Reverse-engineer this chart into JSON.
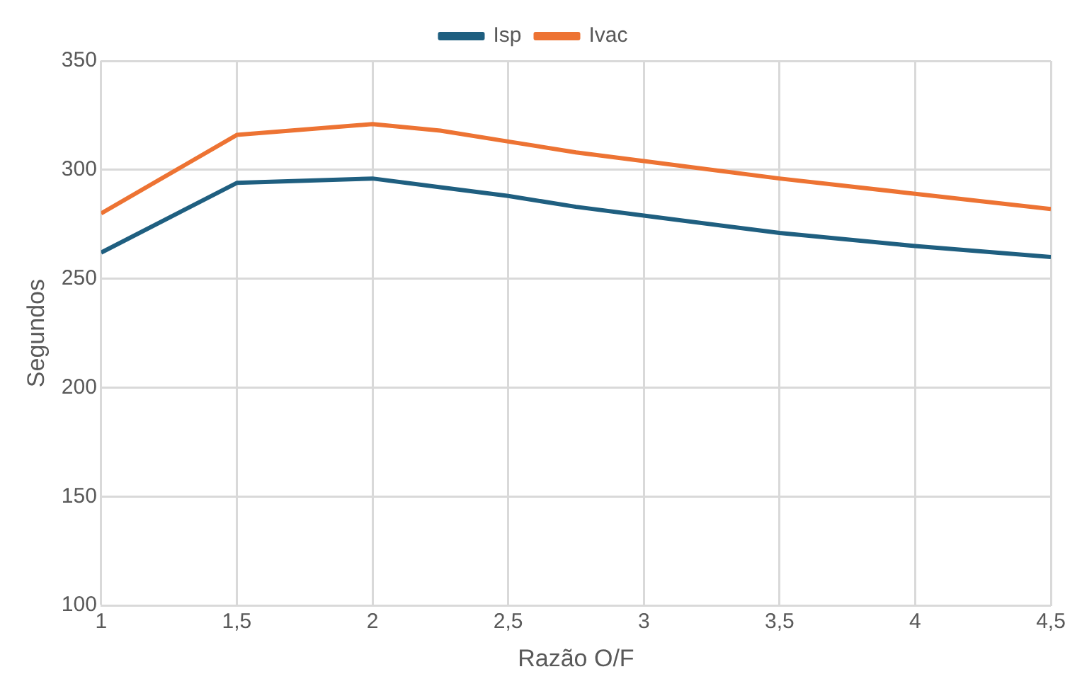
{
  "chart_data": {
    "type": "line",
    "xlabel": "Razão O/F",
    "ylabel": "Segundos",
    "x": [
      1,
      1.5,
      2,
      2.25,
      2.5,
      2.75,
      3,
      3.5,
      4,
      4.5
    ],
    "series": [
      {
        "name": "Isp",
        "color": "#1f5f80",
        "values": [
          262,
          294,
          296,
          292,
          288,
          283,
          279,
          271,
          265,
          260
        ]
      },
      {
        "name": "Ivac",
        "color": "#ed7333",
        "values": [
          280,
          316,
          321,
          318,
          313,
          308,
          304,
          296,
          289,
          282
        ]
      }
    ],
    "xlim": [
      1,
      4.5
    ],
    "xticks": [
      1,
      {
        "value": 1.5,
        "label": "1,5"
      },
      2,
      {
        "value": 2.5,
        "label": "2,5"
      },
      3,
      {
        "value": 3.5,
        "label": "3,5"
      },
      4,
      {
        "value": 4.5,
        "label": "4,5"
      }
    ],
    "ylim": [
      100,
      350
    ],
    "yticks": [
      100,
      150,
      200,
      250,
      300,
      350
    ],
    "grid": true,
    "legend": "top",
    "marker": "none",
    "line_style": "solid"
  }
}
